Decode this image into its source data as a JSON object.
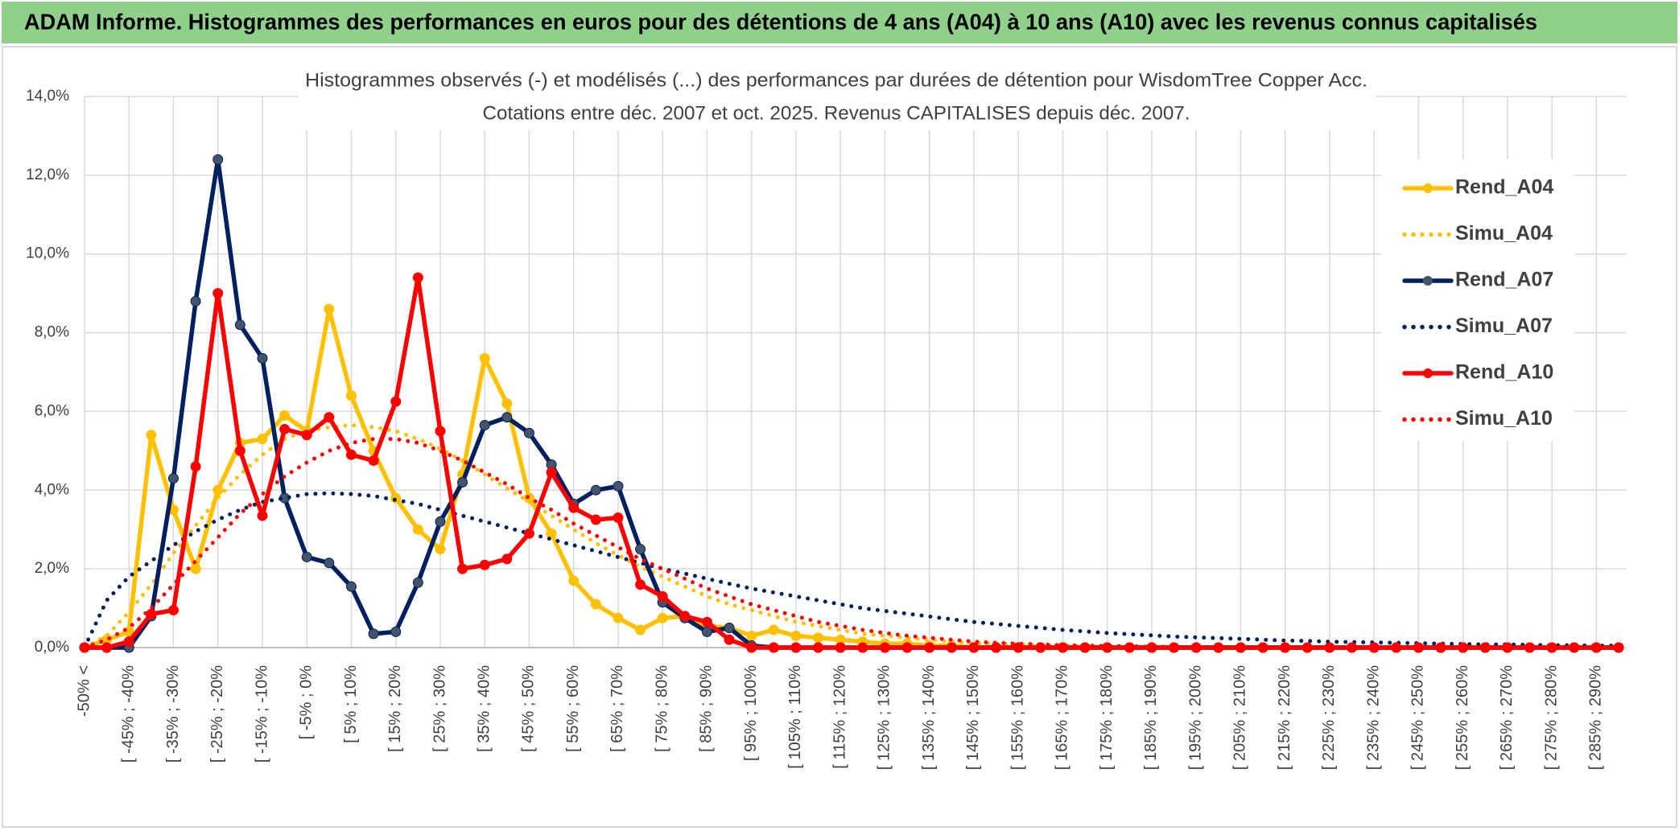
{
  "header": {
    "title": "ADAM Informe. Histogrammes des performances en euros pour des détentions de 4 ans (A04) à 10 ans (A10) avec les revenus connus capitalisés"
  },
  "chart_data": {
    "type": "line",
    "title": "Histogrammes observés (-) et modélisés (...) des performances par durées de détention pour WisdomTree Copper Acc.",
    "subtitle": "Cotations entre déc. 2007 et oct. 2025. Revenus CAPITALISES depuis déc. 2007.",
    "categories": [
      "-50% <",
      null,
      "[ -45% ; -40%",
      null,
      "[ -35% ; -30%",
      null,
      "[ -25% ; -20%",
      null,
      "[ -15% ; -10%",
      null,
      "[ -5% ; 0%",
      null,
      "[ 5% ; 10%",
      null,
      "[ 15% ; 20%",
      null,
      "[ 25% ; 30%",
      null,
      "[ 35% ; 40%",
      null,
      "[ 45% ; 50%",
      null,
      "[ 55% ; 60%",
      null,
      "[ 65% ; 70%",
      null,
      "[ 75% ; 80%",
      null,
      "[ 85% ; 90%",
      null,
      "[ 95% ; 100%",
      null,
      "[ 105% ; 110%",
      null,
      "[ 115% ; 120%",
      null,
      "[ 125% ; 130%",
      null,
      "[ 135% ; 140%",
      null,
      "[ 145% ; 150%",
      null,
      "[ 155% ; 160%",
      null,
      "[ 165% ; 170%",
      null,
      "[ 175% ; 180%",
      null,
      "[ 185% ; 190%",
      null,
      "[ 195% ; 200%",
      null,
      "[ 205% ; 210%",
      null,
      "[ 215% ; 220%",
      null,
      "[ 225% ; 230%",
      null,
      "[ 235% ; 240%",
      null,
      "[ 245% ; 250%",
      null,
      "[ 255% ; 260%",
      null,
      "[ 265% ; 270%",
      null,
      "[ 275% ; 280%",
      null,
      "[ 285% ; 290%",
      null
    ],
    "ylim": [
      0,
      14
    ],
    "yticks": [
      {
        "value": 0,
        "label": "0,0%"
      },
      {
        "value": 2,
        "label": "2,0%"
      },
      {
        "value": 4,
        "label": "4,0%"
      },
      {
        "value": 6,
        "label": "6,0%"
      },
      {
        "value": 8,
        "label": "8,0%"
      },
      {
        "value": 10,
        "label": "10,0%"
      },
      {
        "value": 12,
        "label": "12,0%"
      },
      {
        "value": 14,
        "label": "14,0%"
      }
    ],
    "grid": true,
    "legend": "right",
    "series": [
      {
        "name": "Rend_A04",
        "color": "#ffc000",
        "style": "solid",
        "markers": true,
        "values": [
          0,
          0.2,
          0.4,
          5.4,
          3.5,
          2.0,
          4.0,
          5.2,
          5.3,
          5.9,
          5.5,
          8.6,
          6.4,
          5.0,
          3.8,
          3.0,
          2.5,
          4.4,
          7.35,
          6.2,
          3.8,
          2.9,
          1.7,
          1.1,
          0.75,
          0.45,
          0.75,
          0.8,
          0.55,
          0.5,
          0.3,
          0.45,
          0.3,
          0.25,
          0.2,
          0.15,
          0.1,
          0.1,
          0.05,
          0.05,
          0,
          0,
          0,
          0,
          0,
          0,
          0,
          0,
          0,
          0,
          0,
          0,
          0,
          0,
          0,
          0,
          0,
          0,
          0,
          0,
          0,
          0,
          0,
          0,
          0,
          0,
          0,
          0,
          0,
          0
        ]
      },
      {
        "name": "Simu_A04",
        "color": "#ffc000",
        "style": "dotted",
        "markers": false,
        "values": [
          0,
          0.3,
          0.9,
          1.6,
          2.4,
          3.1,
          3.8,
          4.4,
          4.9,
          5.3,
          5.5,
          5.6,
          5.65,
          5.6,
          5.5,
          5.3,
          5.05,
          4.75,
          4.4,
          4.05,
          3.7,
          3.35,
          3.0,
          2.65,
          2.35,
          2.05,
          1.8,
          1.55,
          1.3,
          1.1,
          0.95,
          0.8,
          0.65,
          0.55,
          0.45,
          0.35,
          0.3,
          0.25,
          0.2,
          0.15,
          0.12,
          0.1,
          0.08,
          0.06,
          0.05,
          0.04,
          0.03,
          0.02,
          0.02,
          0.01,
          0,
          0,
          0,
          0,
          0,
          0,
          0,
          0,
          0,
          0,
          0,
          0,
          0,
          0,
          0,
          0,
          0,
          0,
          0,
          0
        ]
      },
      {
        "name": "Rend_A07",
        "color": "#002060",
        "style": "solid",
        "markers": true,
        "values": [
          0,
          0,
          0,
          0.8,
          4.3,
          8.8,
          12.4,
          8.2,
          7.35,
          3.8,
          2.3,
          2.15,
          1.55,
          0.35,
          0.4,
          1.65,
          3.2,
          4.2,
          5.65,
          5.85,
          5.45,
          4.65,
          3.65,
          4.0,
          4.1,
          2.5,
          1.15,
          0.75,
          0.4,
          0.5,
          0.05,
          0,
          0,
          0,
          0,
          0,
          0,
          0,
          0,
          0,
          0,
          0,
          0,
          0,
          0,
          0,
          0,
          0,
          0,
          0,
          0,
          0,
          0,
          0,
          0,
          0,
          0,
          0,
          0,
          0,
          0,
          0,
          0,
          0,
          0,
          0,
          0,
          0,
          0,
          0
        ]
      },
      {
        "name": "Simu_A07",
        "color": "#002060",
        "style": "dotted",
        "markers": false,
        "values": [
          0,
          1.2,
          1.8,
          2.2,
          2.6,
          2.95,
          3.25,
          3.5,
          3.7,
          3.8,
          3.9,
          3.92,
          3.9,
          3.85,
          3.75,
          3.65,
          3.5,
          3.35,
          3.2,
          3.05,
          2.9,
          2.75,
          2.6,
          2.45,
          2.3,
          2.15,
          2.0,
          1.88,
          1.75,
          1.62,
          1.5,
          1.4,
          1.3,
          1.2,
          1.1,
          1.0,
          0.93,
          0.86,
          0.79,
          0.72,
          0.65,
          0.6,
          0.55,
          0.5,
          0.45,
          0.41,
          0.37,
          0.34,
          0.31,
          0.28,
          0.26,
          0.24,
          0.22,
          0.2,
          0.18,
          0.17,
          0.15,
          0.14,
          0.13,
          0.12,
          0.11,
          0.1,
          0.09,
          0.08,
          0.08,
          0.07,
          0.06,
          0.06,
          0.05,
          0.05
        ]
      },
      {
        "name": "Rend_A10",
        "color": "#ff0000",
        "style": "solid",
        "markers": true,
        "values": [
          0,
          0,
          0.15,
          0.85,
          0.95,
          4.6,
          9.0,
          5.0,
          3.35,
          5.55,
          5.4,
          5.85,
          4.9,
          4.75,
          6.25,
          9.4,
          5.5,
          2.0,
          2.1,
          2.25,
          2.9,
          4.45,
          3.55,
          3.25,
          3.3,
          1.6,
          1.3,
          0.8,
          0.65,
          0.2,
          0,
          0,
          0,
          0,
          0,
          0,
          0,
          0,
          0,
          0,
          0,
          0,
          0,
          0,
          0,
          0,
          0,
          0,
          0,
          0,
          0,
          0,
          0,
          0,
          0,
          0,
          0,
          0,
          0,
          0,
          0,
          0,
          0,
          0,
          0,
          0,
          0,
          0,
          0,
          0
        ]
      },
      {
        "name": "Simu_A10",
        "color": "#ff0000",
        "style": "dotted",
        "markers": false,
        "values": [
          0,
          0.2,
          0.5,
          1.0,
          1.6,
          2.2,
          2.8,
          3.4,
          3.9,
          4.35,
          4.7,
          5.0,
          5.2,
          5.3,
          5.3,
          5.2,
          5.0,
          4.75,
          4.45,
          4.15,
          3.8,
          3.5,
          3.15,
          2.85,
          2.55,
          2.25,
          2.0,
          1.75,
          1.5,
          1.3,
          1.1,
          0.95,
          0.8,
          0.65,
          0.55,
          0.45,
          0.37,
          0.3,
          0.25,
          0.2,
          0.15,
          0.12,
          0.1,
          0.08,
          0.06,
          0.05,
          0.04,
          0.03,
          0.02,
          0.02,
          0,
          0,
          0,
          0,
          0,
          0,
          0,
          0,
          0,
          0,
          0,
          0,
          0,
          0,
          0,
          0,
          0,
          0,
          0,
          0
        ]
      }
    ]
  }
}
